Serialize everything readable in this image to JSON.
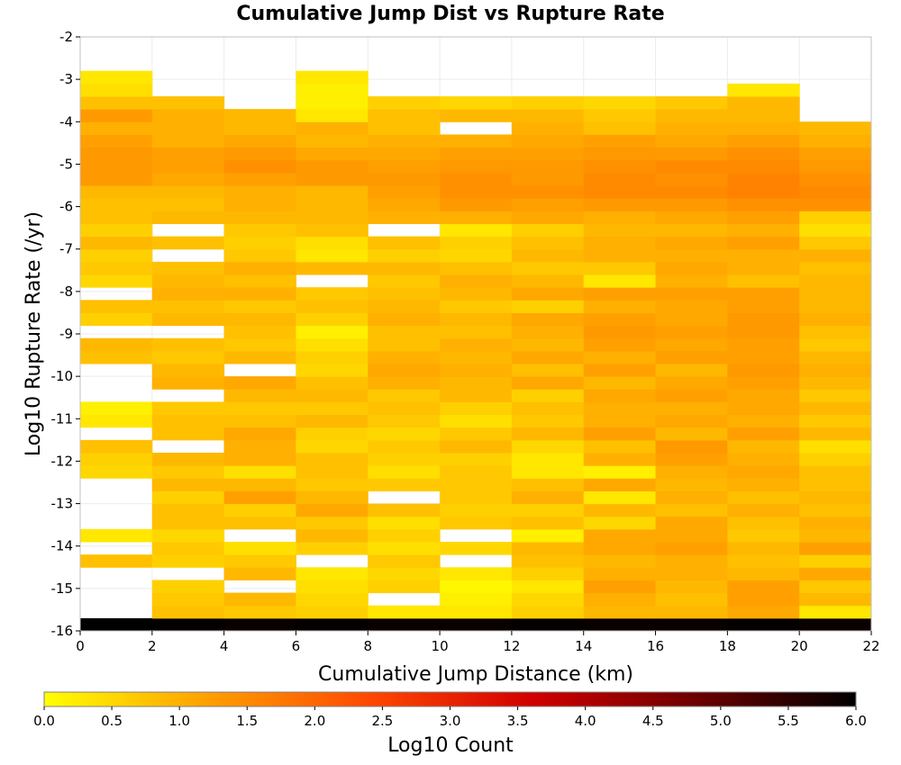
{
  "chart_data": {
    "type": "heatmap",
    "title": "Cumulative Jump Dist vs Rupture Rate",
    "xlabel": "Cumulative Jump Distance (km)",
    "ylabel": "Log10 Rupture Rate (/yr)",
    "xlim": [
      0,
      22
    ],
    "ylim": [
      -16,
      -2
    ],
    "x_ticks": [
      "0",
      "2",
      "4",
      "6",
      "8",
      "10",
      "12",
      "14",
      "16",
      "18",
      "20",
      "22"
    ],
    "y_ticks": [
      "-16",
      "-15",
      "-14",
      "-13",
      "-12",
      "-11",
      "-10",
      "-9",
      "-8",
      "-7",
      "-6",
      "-5",
      "-4",
      "-3",
      "-2"
    ],
    "x_bin_edges": [
      0,
      2,
      4,
      6,
      8,
      10,
      12,
      14,
      16,
      18,
      20,
      22
    ],
    "y_bin_start": -16,
    "y_bin_width": 0.3,
    "y_bin_count": 44,
    "values": [
      [
        6.0,
        5.95,
        5.9,
        5.95,
        5.9,
        5.9,
        5.95,
        5.9,
        5.9,
        5.95,
        5.9
      ],
      [
        null,
        0.8,
        0.7,
        0.6,
        0.3,
        0.3,
        0.6,
        0.9,
        0.9,
        1.1,
        0.3
      ],
      [
        null,
        0.7,
        0.9,
        0.5,
        null,
        0.2,
        0.5,
        1.0,
        0.8,
        1.2,
        0.9
      ],
      [
        null,
        0.6,
        null,
        0.4,
        0.6,
        0.1,
        0.3,
        1.2,
        0.9,
        1.2,
        0.7
      ],
      [
        null,
        null,
        0.9,
        0.3,
        0.5,
        0.3,
        0.6,
        1.0,
        1.0,
        0.9,
        1.1
      ],
      [
        0.8,
        0.6,
        0.7,
        null,
        0.7,
        null,
        0.8,
        0.9,
        1.0,
        0.8,
        0.6
      ],
      [
        null,
        0.7,
        0.4,
        0.6,
        0.4,
        0.5,
        0.9,
        1.1,
        1.2,
        0.9,
        1.2
      ],
      [
        0.3,
        0.5,
        null,
        0.9,
        0.6,
        null,
        0.2,
        1.1,
        1.1,
        0.7,
        0.9
      ],
      [
        null,
        0.8,
        0.8,
        0.7,
        0.4,
        0.7,
        0.8,
        0.5,
        1.1,
        0.8,
        1.0
      ],
      [
        null,
        0.8,
        0.6,
        1.1,
        0.8,
        0.6,
        0.6,
        0.9,
        0.8,
        1.0,
        0.8
      ],
      [
        null,
        0.6,
        1.2,
        0.9,
        null,
        0.7,
        1.0,
        0.3,
        1.0,
        0.8,
        0.9
      ],
      [
        null,
        0.9,
        0.9,
        0.7,
        0.7,
        0.7,
        0.8,
        1.1,
        0.9,
        1.0,
        0.8
      ],
      [
        0.5,
        0.7,
        0.4,
        0.8,
        0.4,
        0.7,
        0.3,
        0.2,
        1.0,
        1.1,
        0.8
      ],
      [
        0.6,
        0.9,
        1.0,
        0.8,
        0.6,
        0.6,
        0.3,
        1.0,
        1.2,
        1.0,
        0.6
      ],
      [
        0.8,
        null,
        1.0,
        0.5,
        0.7,
        0.9,
        0.5,
        0.8,
        1.3,
        0.9,
        0.4
      ],
      [
        null,
        0.8,
        1.1,
        0.6,
        0.5,
        0.7,
        0.9,
        1.2,
        0.9,
        1.2,
        0.9
      ],
      [
        0.3,
        0.8,
        0.8,
        0.9,
        0.7,
        0.4,
        0.7,
        1.0,
        1.1,
        1.0,
        0.7
      ],
      [
        0.2,
        0.7,
        0.7,
        0.7,
        0.8,
        0.6,
        0.8,
        1.0,
        1.0,
        1.1,
        0.9
      ],
      [
        null,
        null,
        0.9,
        0.9,
        0.7,
        0.9,
        0.6,
        1.1,
        1.2,
        1.1,
        0.7
      ],
      [
        null,
        1.0,
        1.1,
        0.8,
        1.0,
        0.9,
        1.1,
        0.9,
        1.1,
        1.2,
        0.9
      ],
      [
        null,
        0.9,
        null,
        0.5,
        1.1,
        1.0,
        0.8,
        1.2,
        0.9,
        1.3,
        1.0
      ],
      [
        0.8,
        0.7,
        0.9,
        0.6,
        1.0,
        0.9,
        1.1,
        1.0,
        1.2,
        1.2,
        0.9
      ],
      [
        0.9,
        0.8,
        0.7,
        0.4,
        0.8,
        1.0,
        0.9,
        1.2,
        1.1,
        1.2,
        0.7
      ],
      [
        null,
        null,
        0.8,
        0.2,
        0.8,
        0.8,
        1.0,
        1.3,
        1.2,
        1.3,
        0.8
      ],
      [
        0.6,
        0.9,
        0.9,
        0.6,
        1.0,
        0.9,
        1.1,
        1.2,
        1.1,
        1.3,
        1.0
      ],
      [
        0.8,
        0.8,
        0.7,
        0.8,
        0.9,
        0.7,
        0.6,
        1.0,
        1.1,
        1.2,
        0.9
      ],
      [
        null,
        1.0,
        1.0,
        0.7,
        0.8,
        0.9,
        1.1,
        1.2,
        1.2,
        1.2,
        0.9
      ],
      [
        0.5,
        0.9,
        0.8,
        null,
        0.7,
        1.0,
        0.9,
        0.3,
        1.0,
        0.8,
        0.9
      ],
      [
        0.7,
        0.8,
        1.0,
        0.9,
        0.9,
        0.8,
        0.7,
        0.7,
        1.1,
        1.0,
        0.8
      ],
      [
        0.6,
        null,
        0.7,
        0.3,
        0.6,
        0.5,
        0.9,
        1.0,
        1.0,
        1.0,
        1.0
      ],
      [
        0.9,
        0.8,
        0.6,
        0.4,
        0.8,
        0.6,
        0.8,
        1.0,
        1.1,
        1.2,
        0.7
      ],
      [
        0.6,
        null,
        0.7,
        0.8,
        null,
        0.3,
        0.6,
        0.9,
        0.9,
        1.0,
        0.4
      ],
      [
        0.8,
        0.9,
        0.9,
        0.9,
        1.0,
        1.0,
        1.1,
        1.0,
        1.1,
        1.2,
        0.6
      ],
      [
        0.8,
        0.8,
        1.0,
        0.9,
        1.1,
        1.3,
        1.2,
        1.3,
        1.3,
        1.4,
        1.4
      ],
      [
        0.9,
        0.9,
        1.0,
        0.9,
        1.2,
        1.4,
        1.4,
        1.5,
        1.5,
        1.6,
        1.5
      ],
      [
        1.3,
        1.1,
        1.2,
        1.3,
        1.3,
        1.4,
        1.3,
        1.5,
        1.4,
        1.6,
        1.4
      ],
      [
        1.3,
        1.2,
        1.4,
        1.3,
        1.2,
        1.3,
        1.3,
        1.4,
        1.5,
        1.5,
        1.3
      ],
      [
        1.3,
        1.2,
        1.3,
        1.1,
        1.1,
        1.2,
        1.2,
        1.3,
        1.3,
        1.4,
        1.2
      ],
      [
        1.2,
        1.0,
        1.1,
        0.9,
        1.0,
        1.0,
        1.1,
        1.2,
        1.1,
        1.2,
        1.0
      ],
      [
        1.0,
        1.0,
        0.9,
        1.0,
        0.8,
        null,
        1.0,
        0.8,
        1.0,
        1.0,
        0.9
      ],
      [
        1.3,
        1.0,
        0.9,
        0.3,
        0.8,
        0.9,
        0.9,
        0.7,
        0.9,
        0.9,
        null
      ],
      [
        0.8,
        0.8,
        null,
        0.2,
        0.6,
        0.5,
        0.6,
        0.5,
        0.7,
        0.9,
        null
      ],
      [
        0.4,
        null,
        null,
        0.2,
        null,
        null,
        null,
        null,
        null,
        0.3,
        null
      ],
      [
        0.3,
        null,
        null,
        0.3,
        null,
        null,
        null,
        null,
        null,
        null,
        null
      ]
    ],
    "colorbar": {
      "label": "Log10 Count",
      "min": 0,
      "max": 6,
      "ticks": [
        "0.0",
        "0.5",
        "1.0",
        "1.5",
        "2.0",
        "2.5",
        "3.0",
        "3.5",
        "4.0",
        "4.5",
        "5.0",
        "5.5",
        "6.0"
      ],
      "colors": [
        "#ffff00",
        "#ffa000",
        "#ff4800",
        "#d20000",
        "#6e0000",
        "#000000"
      ]
    },
    "grid": true,
    "legend": "colorbar-bottom"
  }
}
